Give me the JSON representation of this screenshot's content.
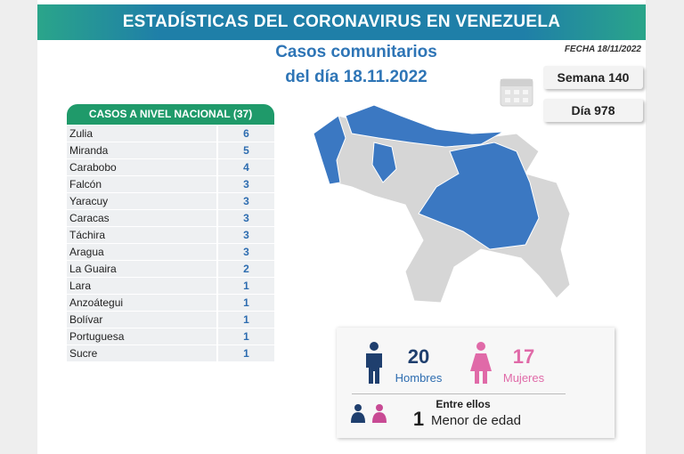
{
  "header": {
    "title": "ESTADÍSTICAS DEL CORONAVIRUS EN VENEZUELA",
    "subtitle_line1": "Casos comunitarios",
    "subtitle_line2": "del día 18.11.2022",
    "date": "FECHA 18/11/2022",
    "week": "Semana 140",
    "day": "Día 978"
  },
  "table": {
    "title": "CASOS A NIVEL NACIONAL",
    "total": "(37)",
    "rows": [
      [
        "Zulia",
        6
      ],
      [
        "Miranda",
        5
      ],
      [
        "Carabobo",
        4
      ],
      [
        "Falcón",
        3
      ],
      [
        "Yaracuy",
        3
      ],
      [
        "Caracas",
        3
      ],
      [
        "Táchira",
        3
      ],
      [
        "Aragua",
        3
      ],
      [
        "La Guaira",
        2
      ],
      [
        "Lara",
        1
      ],
      [
        "Anzoátegui",
        1
      ],
      [
        "Bolívar",
        1
      ],
      [
        "Portuguesa",
        1
      ],
      [
        "Sucre",
        1
      ]
    ]
  },
  "gender": {
    "men": {
      "count": 20,
      "label": "Hombres"
    },
    "women": {
      "count": 17,
      "label": "Mujeres"
    },
    "minors": {
      "intro": "Entre ellos",
      "count": 1,
      "label": "Menor de edad"
    }
  }
}
